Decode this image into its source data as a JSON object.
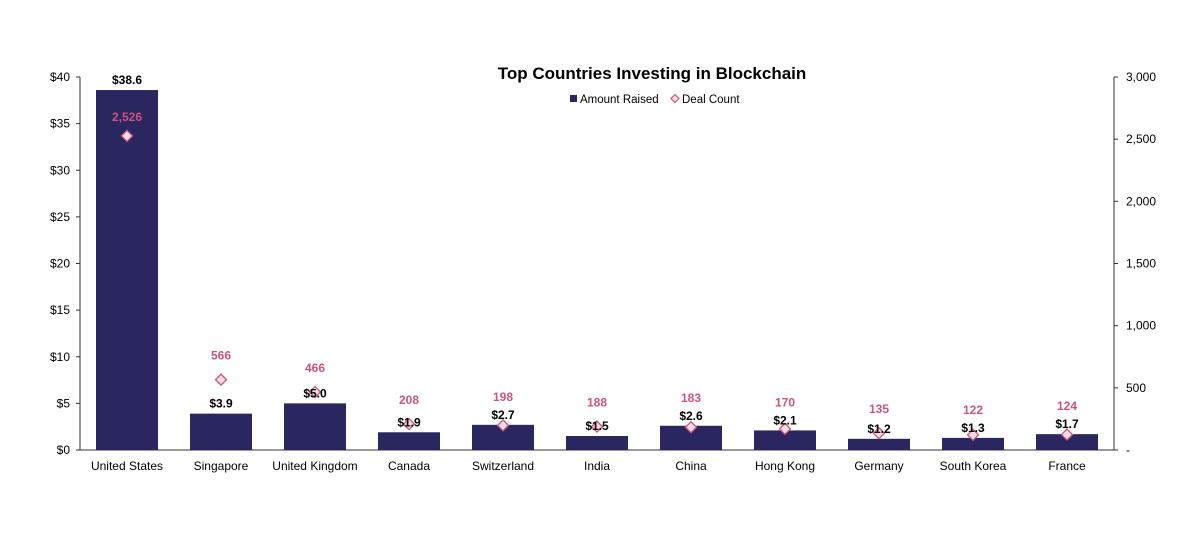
{
  "chart_data": {
    "type": "bar",
    "title": "Top Countries Investing in Blockchain",
    "categories": [
      "United States",
      "Singapore",
      "United Kingdom",
      "Canada",
      "Switzerland",
      "India",
      "China",
      "Hong Kong",
      "Germany",
      "South Korea",
      "France"
    ],
    "series": [
      {
        "name": "Amount Raised",
        "axis": "left",
        "mark": "bar",
        "color": "#2a2660",
        "values": [
          38.6,
          3.9,
          5.0,
          1.9,
          2.7,
          1.5,
          2.6,
          2.1,
          1.2,
          1.3,
          1.7
        ],
        "labels": [
          "$38.6",
          "$3.9",
          "$5.0",
          "$1.9",
          "$2.7",
          "$1.5",
          "$2.6",
          "$2.1",
          "$1.2",
          "$1.3",
          "$1.7"
        ]
      },
      {
        "name": "Deal Count",
        "axis": "right",
        "mark": "diamond",
        "color": "#c9577a",
        "fill": "#f2dde5",
        "values": [
          2526,
          566,
          466,
          208,
          198,
          188,
          183,
          170,
          135,
          122,
          124
        ],
        "labels": [
          "2,526",
          "566",
          "466",
          "208",
          "198",
          "188",
          "183",
          "170",
          "135",
          "122",
          "124"
        ]
      }
    ],
    "y_left": {
      "ylim": [
        0,
        40
      ],
      "ticks": [
        0,
        5,
        10,
        15,
        20,
        25,
        30,
        35,
        40
      ],
      "tick_labels": [
        "$0",
        "$5",
        "$10",
        "$15",
        "$20",
        "$25",
        "$30",
        "$35",
        "$40"
      ]
    },
    "y_right": {
      "ylim": [
        0,
        3000
      ],
      "ticks": [
        0,
        500,
        1000,
        1500,
        2000,
        2500,
        3000
      ],
      "tick_labels": [
        "-",
        "500",
        "1,000",
        "1,500",
        "2,000",
        "2,500",
        "3,000"
      ]
    },
    "legend": {
      "placement": "top-center"
    },
    "grid": false
  }
}
